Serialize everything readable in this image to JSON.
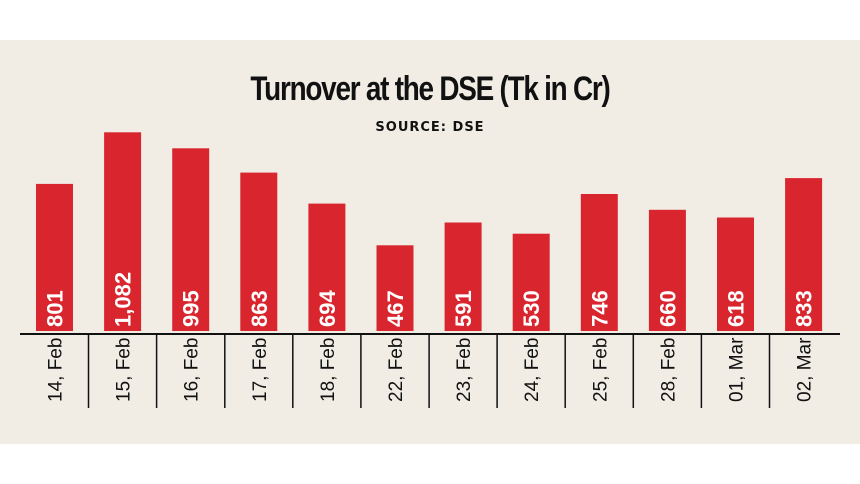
{
  "chart_data": {
    "type": "bar",
    "title": "Turnover at the DSE (Tk in Cr)",
    "subtitle": "SOURCE: DSE",
    "categories": [
      "14, Feb",
      "15, Feb",
      "16, Feb",
      "17, Feb",
      "18, Feb",
      "22, Feb",
      "23, Feb",
      "24, Feb",
      "25, Feb",
      "28, Feb",
      "01, Mar",
      "02, Mar"
    ],
    "values": [
      801,
      1082,
      995,
      863,
      694,
      467,
      591,
      530,
      746,
      660,
      618,
      833
    ],
    "value_labels": [
      "801",
      "1,082",
      "995",
      "863",
      "694",
      "467",
      "591",
      "530",
      "746",
      "660",
      "618",
      "833"
    ],
    "bar_color": "#d9262e",
    "background_color": "#f1ede5",
    "ylim": [
      0,
      1100
    ],
    "grid": false,
    "legend": "none"
  }
}
